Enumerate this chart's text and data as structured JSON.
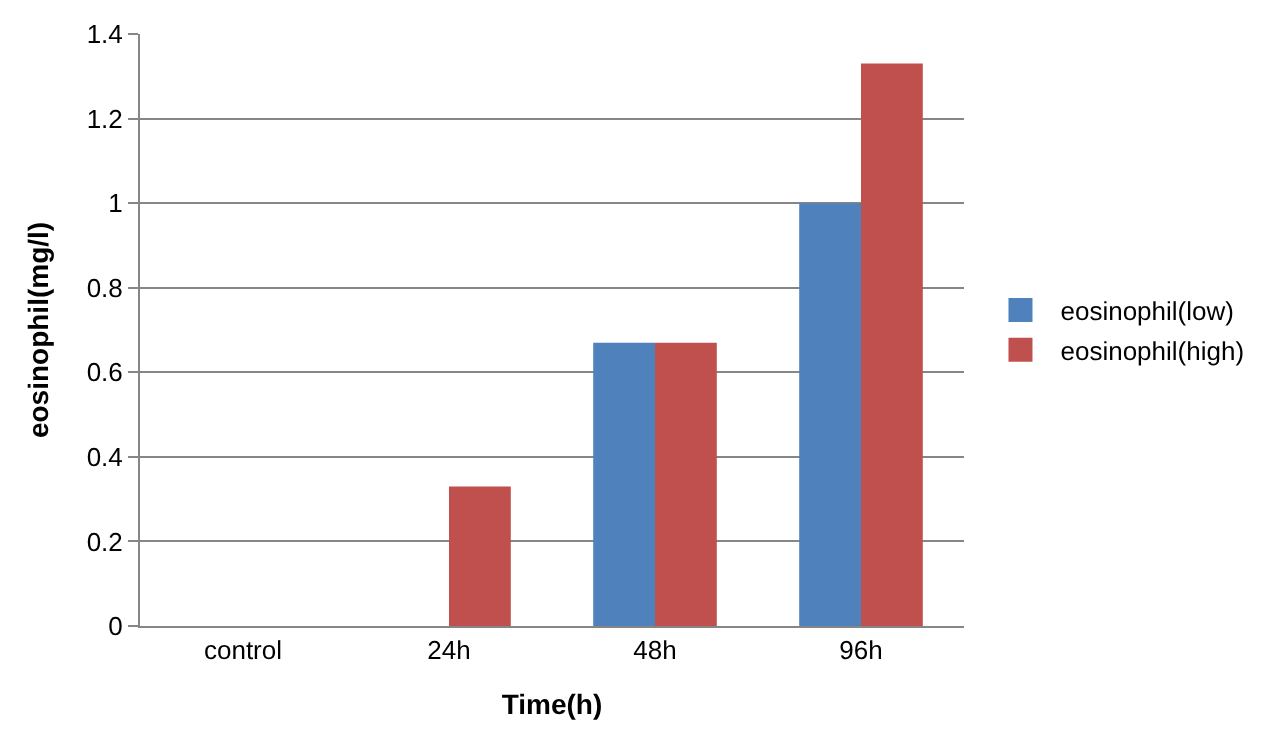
{
  "chart_data": {
    "type": "bar",
    "xlabel": "Time(h)",
    "ylabel": "eosinophil(mg/l)",
    "categories": [
      "control",
      "24h",
      "48h",
      "96h"
    ],
    "series": [
      {
        "name": "eosinophil(low)",
        "color": "#4f81bd",
        "values": [
          0,
          0,
          0.67,
          1
        ]
      },
      {
        "name": "eosinophil(high)",
        "color": "#c0504d",
        "values": [
          0,
          0.33,
          0.67,
          1.33
        ]
      }
    ],
    "ylim": [
      0,
      1.4
    ],
    "yticks": [
      0,
      0.2,
      0.4,
      0.6,
      0.8,
      1,
      1.2,
      1.4
    ],
    "grid": "y",
    "legend": "right"
  }
}
